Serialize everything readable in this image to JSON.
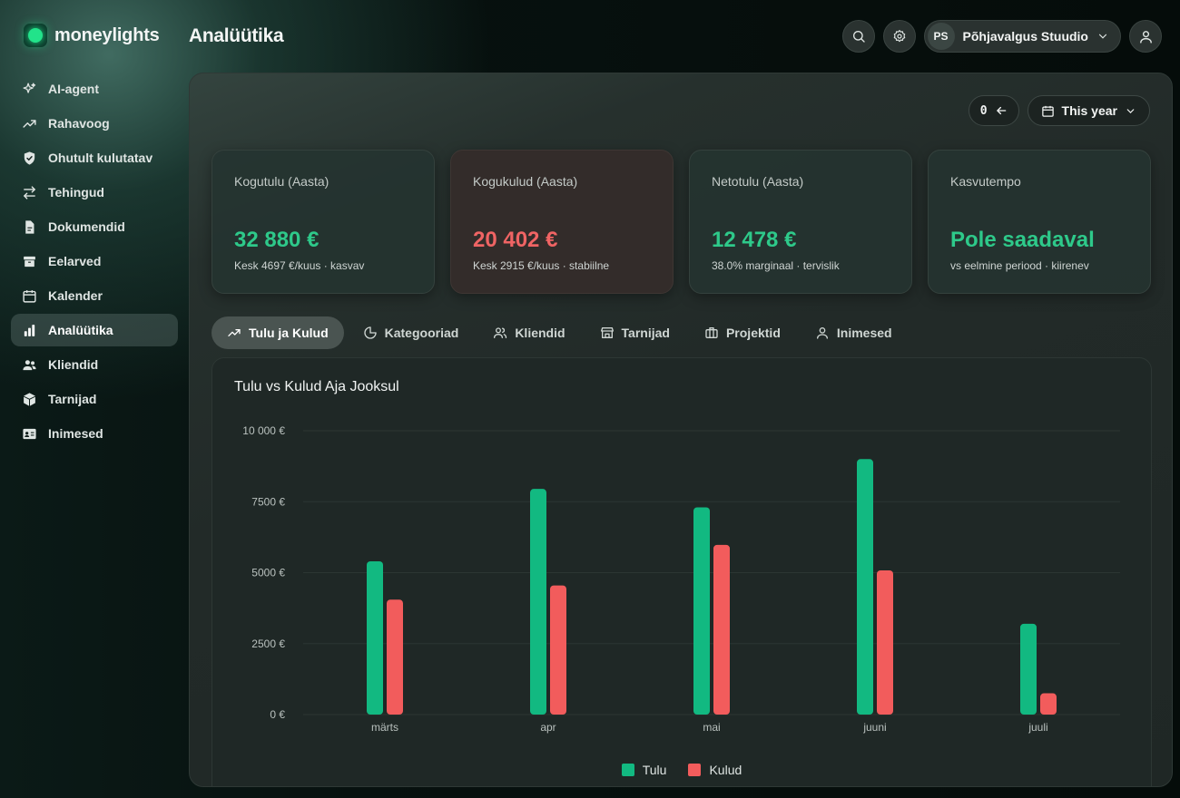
{
  "app": {
    "brand": "moneylights",
    "page_title": "Analüütika"
  },
  "topbar": {
    "workspace_initials": "PS",
    "workspace_name": "Põhjavalgus Stuudio"
  },
  "sidebar": {
    "items": [
      {
        "label": "AI-agent",
        "icon": "sparkles-icon"
      },
      {
        "label": "Rahavoog",
        "icon": "trend-up-icon"
      },
      {
        "label": "Ohutult kulutatav",
        "icon": "shield-check-icon"
      },
      {
        "label": "Tehingud",
        "icon": "arrows-swap-icon"
      },
      {
        "label": "Dokumendid",
        "icon": "document-icon"
      },
      {
        "label": "Eelarved",
        "icon": "archive-box-icon"
      },
      {
        "label": "Kalender",
        "icon": "calendar-icon"
      },
      {
        "label": "Analüütika",
        "icon": "bar-chart-icon",
        "active": true
      },
      {
        "label": "Kliendid",
        "icon": "users-icon"
      },
      {
        "label": "Tarnijad",
        "icon": "cube-icon"
      },
      {
        "label": "Inimesed",
        "icon": "id-card-icon"
      }
    ]
  },
  "controls": {
    "counter_value": "0",
    "period_label": "This year"
  },
  "kpis": [
    {
      "label": "Kogutulu (Aasta)",
      "value": "32 880 €",
      "sub": "Kesk 4697 €/kuus · kasvav",
      "tone": "green"
    },
    {
      "label": "Kogukulud (Aasta)",
      "value": "20 402 €",
      "sub": "Kesk 2915 €/kuus · stabiilne",
      "tone": "red"
    },
    {
      "label": "Netotulu (Aasta)",
      "value": "12 478 €",
      "sub": "38.0% marginaal · tervislik",
      "tone": "green"
    },
    {
      "label": "Kasvutempo",
      "value": "Pole saadaval",
      "sub": "vs eelmine periood · kiirenev",
      "tone": "green"
    }
  ],
  "tabs": [
    {
      "label": "Tulu ja Kulud",
      "icon": "trend-up-icon",
      "active": true
    },
    {
      "label": "Kategooriad",
      "icon": "pie-chart-icon"
    },
    {
      "label": "Kliendid",
      "icon": "users-icon"
    },
    {
      "label": "Tarnijad",
      "icon": "store-icon"
    },
    {
      "label": "Projektid",
      "icon": "briefcase-icon"
    },
    {
      "label": "Inimesed",
      "icon": "user-icon"
    }
  ],
  "colors": {
    "income": "#12b981",
    "expense": "#f25c5c"
  },
  "chart_data": {
    "type": "bar",
    "title": "Tulu vs Kulud Aja Jooksul",
    "categories": [
      "märts",
      "apr",
      "mai",
      "juuni",
      "juuli"
    ],
    "series": [
      {
        "name": "Tulu",
        "values": [
          5400,
          7950,
          7300,
          9000,
          3200
        ]
      },
      {
        "name": "Kulud",
        "values": [
          4050,
          4550,
          5980,
          5080,
          750
        ]
      }
    ],
    "yticks": [
      "0 €",
      "2500 €",
      "5000 €",
      "7500 €",
      "10 000 €"
    ],
    "ytick_values": [
      0,
      2500,
      5000,
      7500,
      10000
    ],
    "ylim": [
      0,
      10000
    ],
    "grid": true,
    "legend": "bottom-center"
  }
}
